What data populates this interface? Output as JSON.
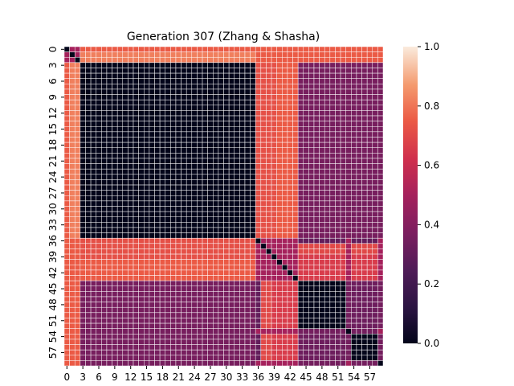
{
  "chart_data": {
    "type": "heatmap",
    "title": "Generation 307 (Zhang & Shasha)",
    "n": 60,
    "x_tick_labels": [
      "0",
      "3",
      "6",
      "9",
      "12",
      "15",
      "18",
      "21",
      "24",
      "27",
      "30",
      "33",
      "36",
      "39",
      "42",
      "45",
      "48",
      "51",
      "54",
      "57"
    ],
    "y_tick_labels": [
      "0",
      "3",
      "6",
      "9",
      "12",
      "15",
      "18",
      "21",
      "24",
      "27",
      "30",
      "33",
      "36",
      "39",
      "42",
      "45",
      "48",
      "51",
      "54",
      "57"
    ],
    "tick_step": 3,
    "vmin": 0.0,
    "vmax": 1.0,
    "colorbar_ticks": [
      "0.0",
      "0.2",
      "0.4",
      "0.6",
      "0.8",
      "1.0"
    ],
    "colormap": "rocket",
    "grid_color": "#ffffff",
    "clusters": {
      "A": [
        3,
        35
      ],
      "E": [
        44,
        52
      ],
      "F": [
        54,
        58
      ]
    },
    "block_values": {
      "within_A": 0.0,
      "within_E": 0.0,
      "within_F": 0.0,
      "A_to_rest": 0.36,
      "E_F_to_rest": 0.35,
      "E_to_F": 0.33,
      "row0_to_A": 0.75,
      "rows1_2_to_A": 0.82,
      "rows36_39_to_A": 0.72,
      "rows40_43_to_A": 0.75,
      "rows40_43_to_right": 0.66,
      "rows36_43_to_right": 0.3,
      "cols37_38": 0.7,
      "cols39_43": 0.58,
      "misc": 0.5
    }
  }
}
